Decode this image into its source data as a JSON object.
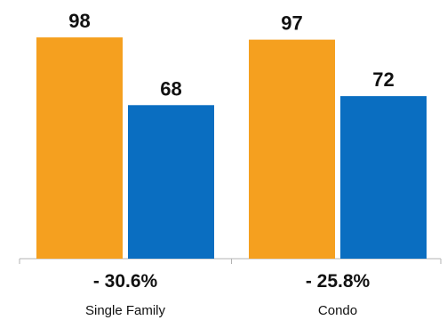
{
  "colors": {
    "series_1": "#F5A01F",
    "series_2": "#0A6EC1",
    "axis": "#b3b3b3"
  },
  "chart_data": {
    "type": "bar",
    "categories": [
      "Single Family",
      "Condo"
    ],
    "series": [
      {
        "values": [
          98,
          97
        ]
      },
      {
        "values": [
          68,
          72
        ]
      }
    ],
    "data_labels": [
      [
        "98",
        "68"
      ],
      [
        "97",
        "72"
      ]
    ],
    "change_labels": [
      "- 30.6%",
      "- 25.8%"
    ],
    "title": "",
    "xlabel": "",
    "ylabel": "",
    "ylim": [
      0,
      100
    ],
    "grid": false,
    "legend": "none"
  }
}
